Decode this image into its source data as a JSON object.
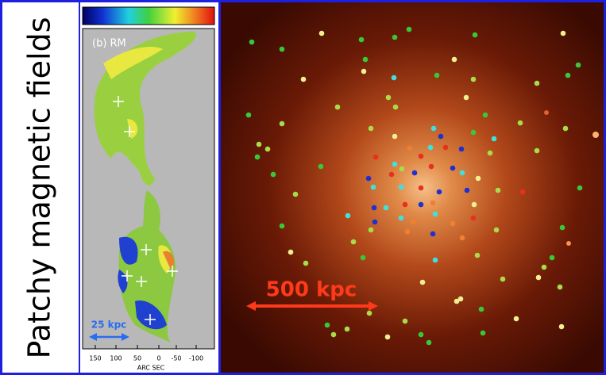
{
  "title": "Patchy magnetic fields",
  "left_panel": {
    "label": "(b) RM",
    "x_ticks": [
      "150",
      "100",
      "50",
      "0",
      "-50",
      "-100"
    ],
    "x_axis_label": "ARC SEC",
    "scale_label": "25 kpc"
  },
  "right_panel": {
    "scale_label": "500 kpc"
  }
}
